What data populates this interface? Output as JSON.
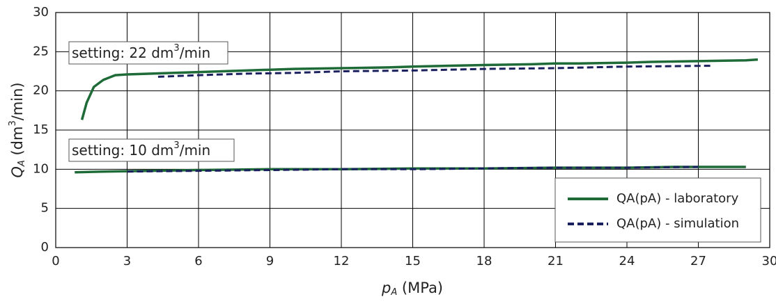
{
  "chart_data": {
    "type": "line",
    "xlabel": [
      "p",
      "A",
      " (MPa)"
    ],
    "ylabel": [
      "Q",
      "A",
      " (dm",
      "3",
      "/min)"
    ],
    "annotations": [
      [
        "setting: 22 dm",
        "3",
        "/min"
      ],
      [
        "setting: 10 dm",
        "3",
        "/min"
      ]
    ],
    "xlim": [
      0,
      30
    ],
    "xticks": [
      0,
      3,
      6,
      9,
      12,
      15,
      18,
      21,
      24,
      27,
      30
    ],
    "ylim": [
      0,
      30
    ],
    "yticks": [
      0,
      5,
      10,
      15,
      20,
      25,
      30
    ],
    "grid": true,
    "legend": "lower right",
    "series": [
      {
        "name": "QA(pA) - laboratory",
        "color": "#1e6b38",
        "dashed": false,
        "x": [
          1.1,
          1.3,
          1.6,
          2,
          2.5,
          3,
          4,
          5,
          6,
          8,
          10,
          12,
          14,
          15,
          18,
          20,
          21,
          22,
          24,
          25,
          27,
          29,
          29.5,
          null,
          0.8,
          2,
          4,
          6,
          9,
          12,
          15,
          18,
          21,
          24,
          26,
          28,
          29
        ],
        "values": [
          16.3,
          18.5,
          20.5,
          21.4,
          22,
          22.1,
          22.2,
          22.3,
          22.4,
          22.6,
          22.8,
          22.9,
          23,
          23.1,
          23.3,
          23.4,
          23.5,
          23.5,
          23.6,
          23.7,
          23.8,
          23.9,
          24,
          null,
          9.6,
          9.7,
          9.8,
          9.9,
          10,
          10,
          10.1,
          10.1,
          10.2,
          10.2,
          10.3,
          10.3,
          10.3
        ]
      },
      {
        "name": "QA(pA) - simulation",
        "color": "#1a1f5e",
        "dashed": true,
        "x": [
          4.3,
          6,
          8,
          10,
          12,
          15,
          18,
          21,
          24,
          27.5,
          null,
          3,
          6,
          9,
          12,
          15,
          18,
          21,
          24,
          27
        ],
        "values": [
          21.8,
          22,
          22.2,
          22.3,
          22.5,
          22.6,
          22.8,
          22.9,
          23.1,
          23.2,
          null,
          9.7,
          9.8,
          9.9,
          10,
          10,
          10.1,
          10.2,
          10.2,
          10.3
        ]
      }
    ]
  }
}
